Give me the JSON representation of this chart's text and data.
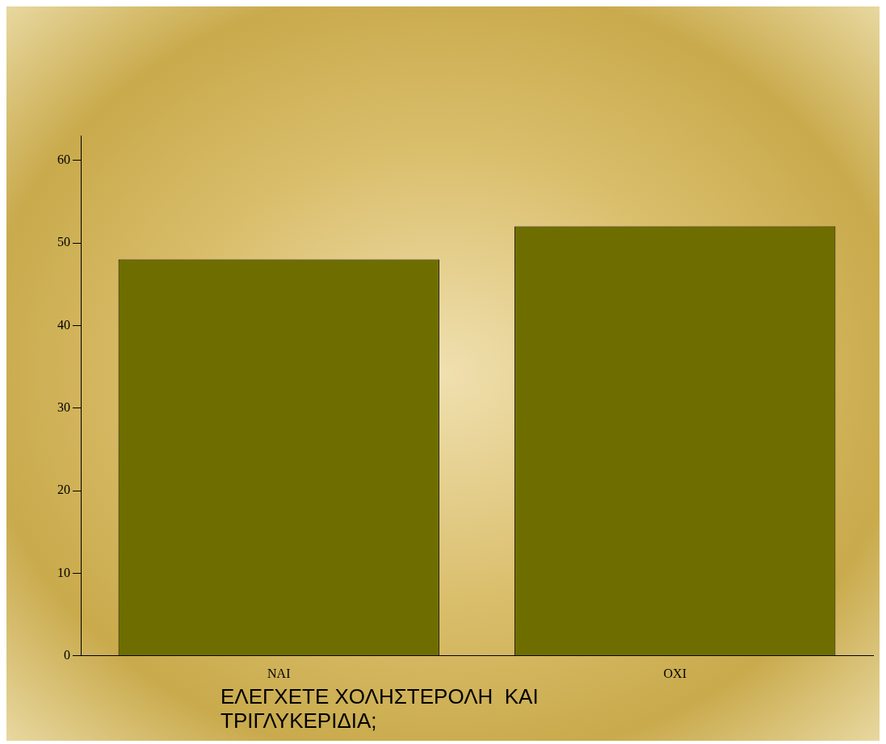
{
  "chart_data": {
    "type": "bar",
    "xlabel": "ΕΛΕΓΧΕΤΕ ΧΟΛΗΣΤΕΡΟΛΗ  ΚΑΙ ΤΡΙΓΛΥΚΕΡΙΔΙΑ;",
    "categories": [
      "ΝΑΙ",
      "ΟΧΙ"
    ],
    "values": [
      48,
      52
    ],
    "color": "#6e6e00",
    "ylim": [
      0,
      63
    ],
    "yticks": [
      0,
      10,
      20,
      30,
      40,
      50,
      60
    ],
    "grid": false,
    "legend": false
  }
}
